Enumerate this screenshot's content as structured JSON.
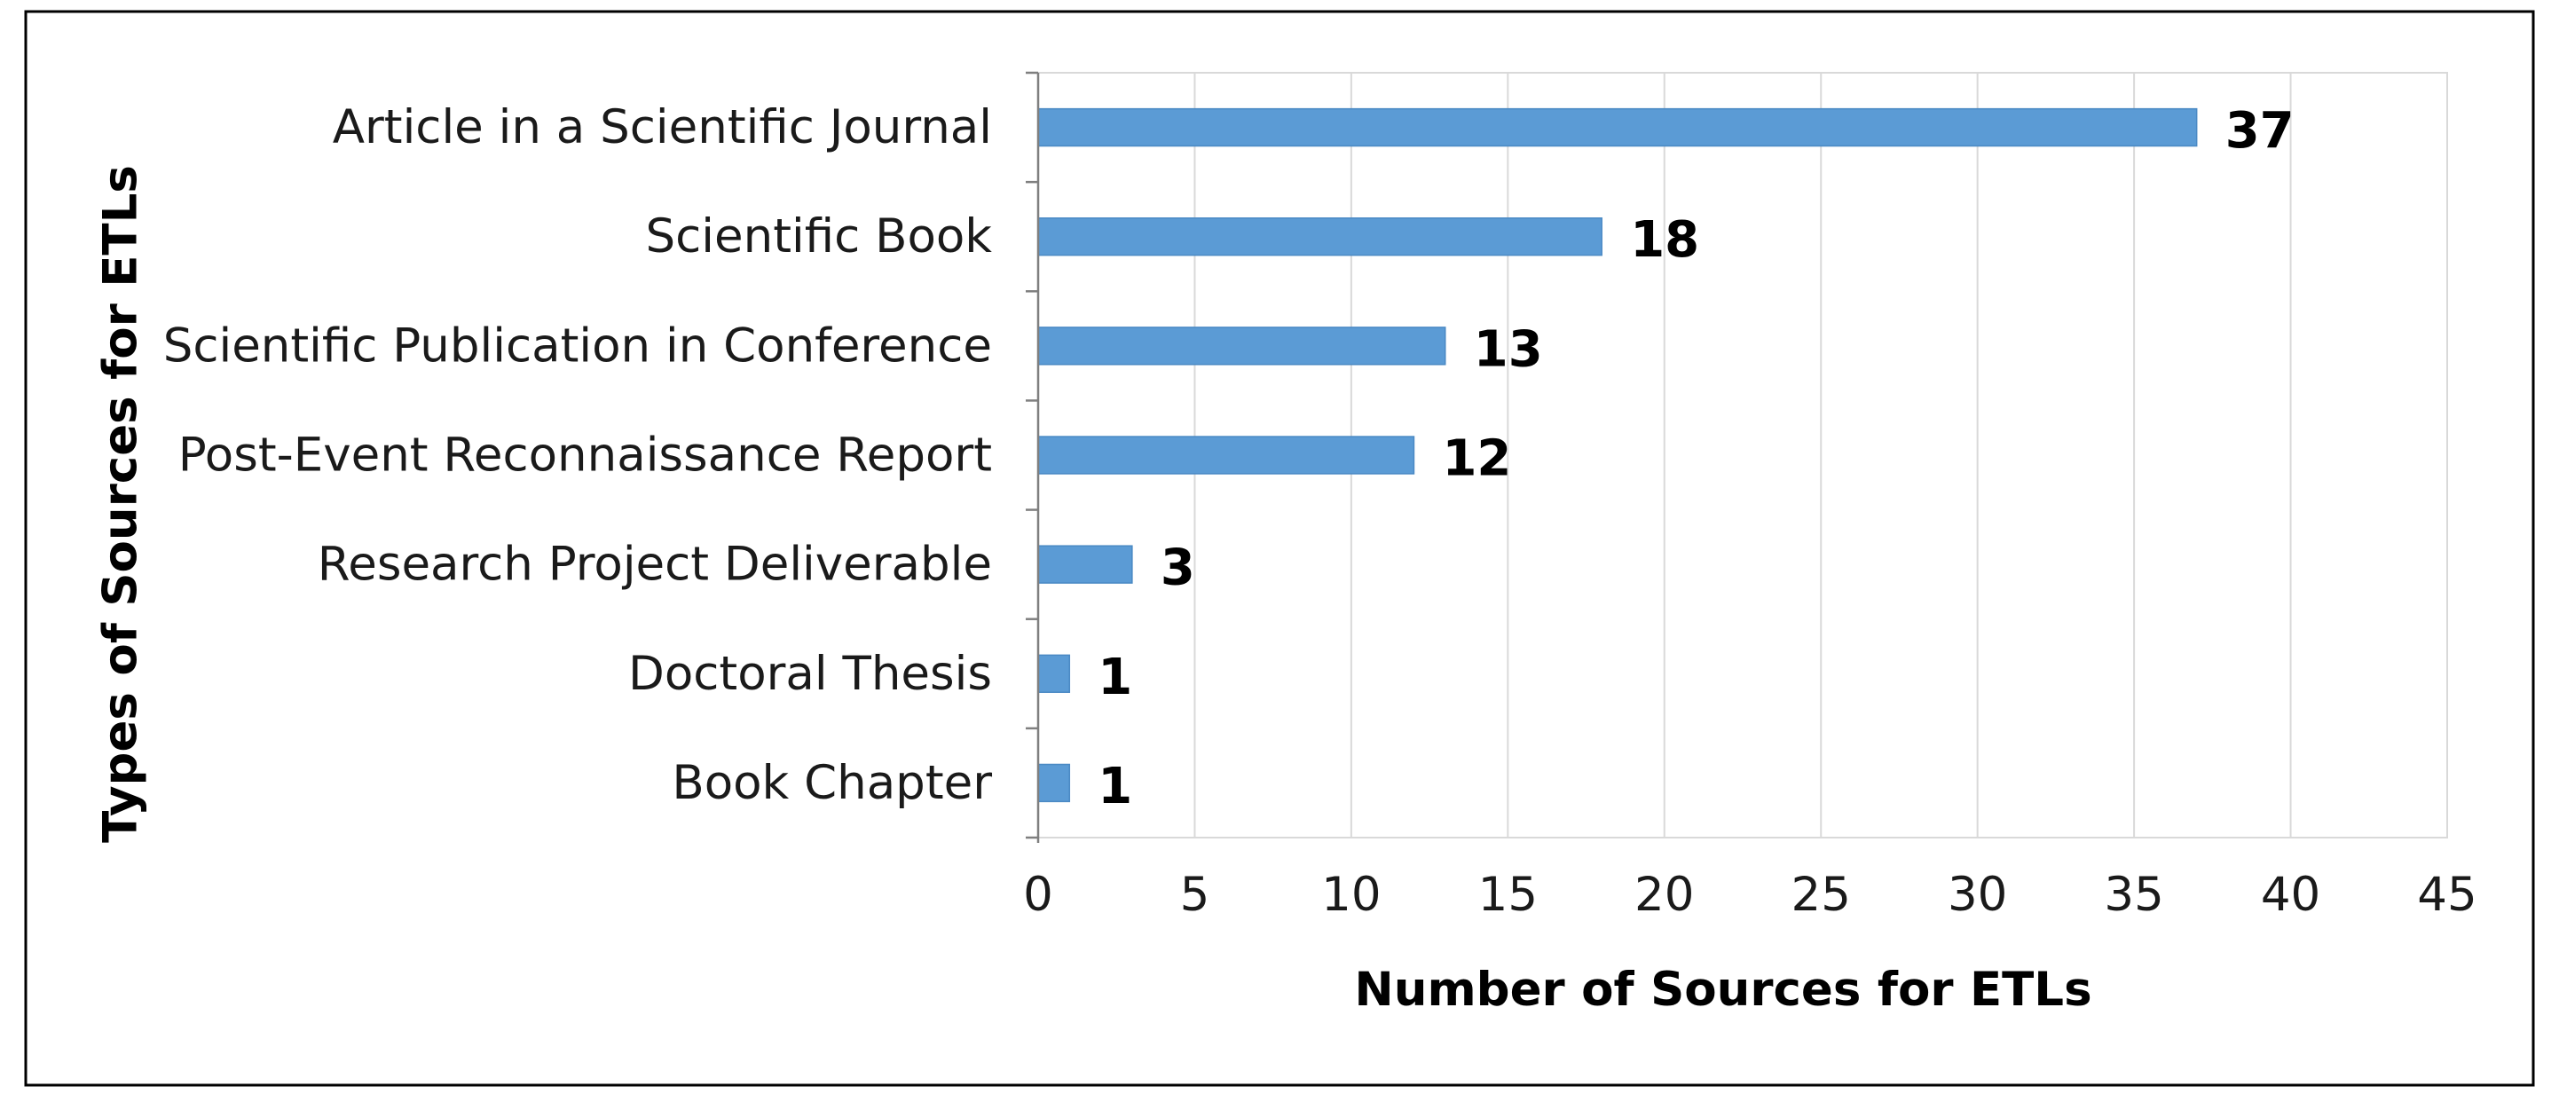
{
  "chart_data": {
    "type": "bar",
    "orientation": "horizontal",
    "categories": [
      "Article in a Scientific Journal",
      "Scientific Book",
      "Scientific Publication in Conference",
      "Post-Event Reconnaissance Report",
      "Research Project Deliverable",
      "Doctoral Thesis",
      "Book Chapter"
    ],
    "values": [
      37,
      18,
      13,
      12,
      3,
      1,
      1
    ],
    "value_labels": [
      "37",
      "18",
      "13",
      "12",
      "3",
      "1",
      "1"
    ],
    "xlabel": "Number of Sources for ETLs",
    "ylabel": "Types of Sources for ETLs",
    "xlim": [
      0,
      45
    ],
    "xticks": [
      0,
      5,
      10,
      15,
      20,
      25,
      30,
      35,
      40,
      45
    ],
    "xtick_labels": [
      "0",
      "5",
      "10",
      "15",
      "20",
      "25",
      "30",
      "35",
      "40",
      "45"
    ],
    "grid": "vertical",
    "legend": "none",
    "colors": {
      "bar": "#5b9bd5",
      "bar_edge": "#4a89c4",
      "grid": "#d9d9d9",
      "axis": "#7f7f7f",
      "frame": "#000000"
    }
  }
}
